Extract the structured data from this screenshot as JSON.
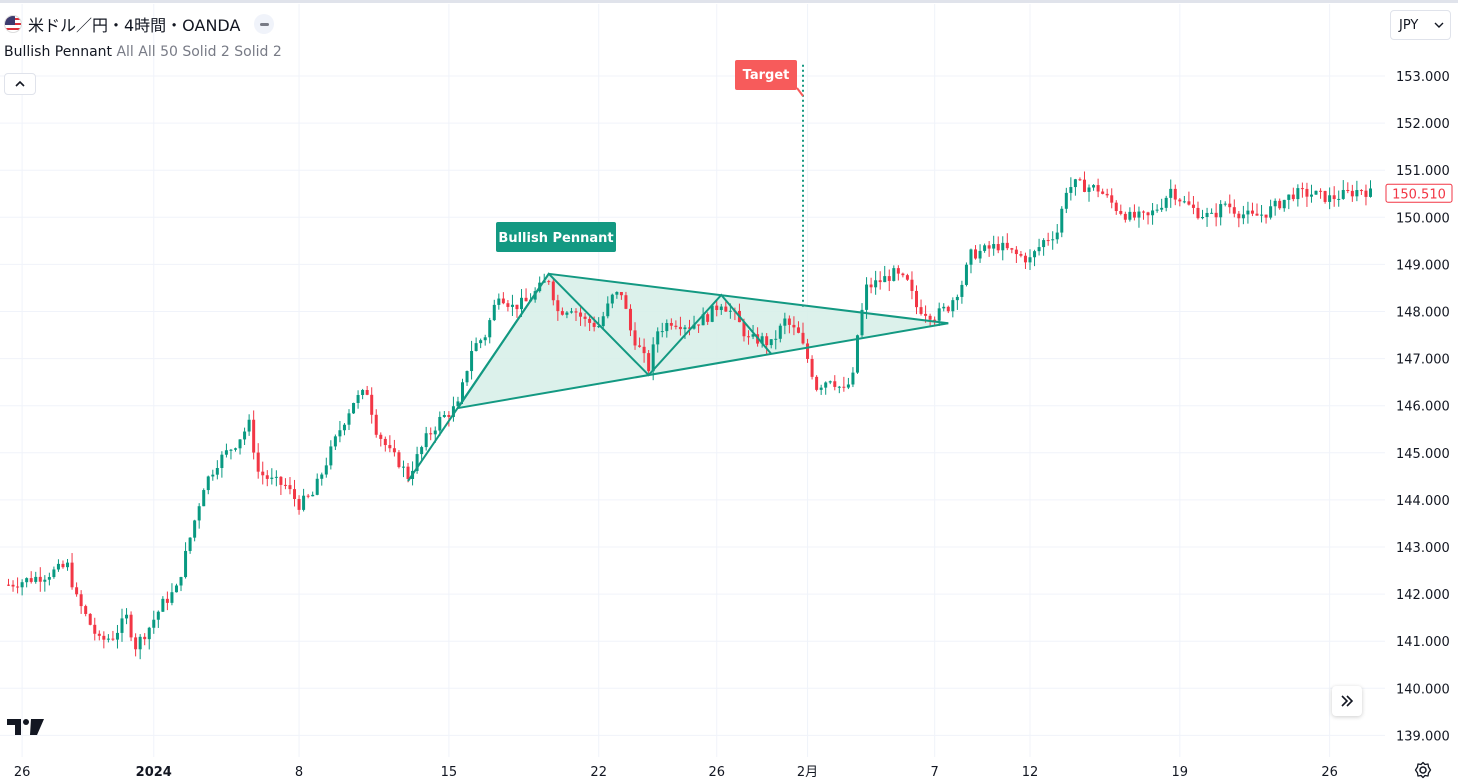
{
  "header": {
    "symbol": "米ドル／円・4時間・OANDA",
    "currency": "JPY"
  },
  "indicator": {
    "name": "Bullish Pennant",
    "params": "All All 50 Solid 2 Solid 2"
  },
  "colors": {
    "up": "#089981",
    "down": "#f23645",
    "pattern": "#139982",
    "pattern_fill": "#d6eee8",
    "target": "#f75b5b",
    "grid": "#f0f3fa",
    "text": "#131722"
  },
  "icons": {
    "flag": "us-flag-icon",
    "hide": "minus-icon",
    "collapse": "chevron-up-icon",
    "currency_dropdown": "chevron-down-icon",
    "logo": "tradingview-logo-icon",
    "scroll": "double-chevron-right-icon",
    "settings": "gear-icon"
  },
  "chart_data": {
    "type": "candlestick",
    "title": "米ドル／円・4時間・OANDA",
    "ylim": [
      138.9,
      153.7
    ],
    "y_ticks": [
      "153.000",
      "152.000",
      "151.000",
      "150.000",
      "149.000",
      "148.000",
      "147.000",
      "146.000",
      "145.000",
      "144.000",
      "143.000",
      "142.000",
      "141.000",
      "140.000",
      "139.000"
    ],
    "y_tick_values": [
      153,
      152,
      151,
      150,
      149,
      148,
      147,
      146,
      145,
      144,
      143,
      142,
      141,
      140,
      139
    ],
    "x_ticks": [
      "26",
      "2024",
      "8",
      "15",
      "22",
      "26",
      "2月",
      "7",
      "12",
      "19",
      "26"
    ],
    "x_tick_bold": [
      false,
      true,
      false,
      false,
      false,
      false,
      false,
      false,
      false,
      false,
      false
    ],
    "x_tick_bar_index": [
      3,
      32,
      64,
      97,
      130,
      156,
      176,
      204,
      225,
      258,
      291
    ],
    "last_price": "150.510",
    "last_price_value": 150.51,
    "grid": true,
    "pattern": {
      "label": "Bullish Pennant",
      "target_label": "Target",
      "pole_start": {
        "bar": 88,
        "value": 144.4
      },
      "pole_mid": {
        "bar": 99,
        "value": 145.9
      },
      "upper_line": [
        {
          "bar": 119,
          "value": 148.8
        },
        {
          "bar": 207,
          "value": 147.75
        }
      ],
      "lower_line": [
        {
          "bar": 99,
          "value": 145.95
        },
        {
          "bar": 207,
          "value": 147.75
        }
      ],
      "zigzag": [
        {
          "bar": 99,
          "value": 145.95
        },
        {
          "bar": 119,
          "value": 148.8
        },
        {
          "bar": 141,
          "value": 146.65
        },
        {
          "bar": 157,
          "value": 148.35
        },
        {
          "bar": 168,
          "value": 147.1
        }
      ],
      "target_bar": 175,
      "target_from": 148.1,
      "target_to": 153.3
    },
    "close_path": [
      [
        0,
        142.2
      ],
      [
        8,
        142.4
      ],
      [
        13,
        142.6
      ],
      [
        15,
        141.9
      ],
      [
        20,
        141.0
      ],
      [
        23,
        141.1
      ],
      [
        26,
        141.5
      ],
      [
        28,
        140.9
      ],
      [
        31,
        141.3
      ],
      [
        34,
        141.8
      ],
      [
        37,
        142.1
      ],
      [
        40,
        143.2
      ],
      [
        43,
        144.3
      ],
      [
        46,
        144.8
      ],
      [
        50,
        145.2
      ],
      [
        53,
        145.6
      ],
      [
        55,
        144.6
      ],
      [
        58,
        144.4
      ],
      [
        61,
        144.3
      ],
      [
        64,
        143.9
      ],
      [
        67,
        144.1
      ],
      [
        70,
        144.8
      ],
      [
        73,
        145.5
      ],
      [
        76,
        146.1
      ],
      [
        79,
        146.3
      ],
      [
        81,
        145.5
      ],
      [
        84,
        145.0
      ],
      [
        86,
        144.8
      ],
      [
        88,
        144.5
      ],
      [
        92,
        145.3
      ],
      [
        95,
        145.7
      ],
      [
        99,
        146.0
      ],
      [
        102,
        147.2
      ],
      [
        105,
        147.5
      ],
      [
        108,
        148.4
      ],
      [
        111,
        148.1
      ],
      [
        114,
        148.2
      ],
      [
        117,
        148.5
      ],
      [
        119,
        148.7
      ],
      [
        121,
        148.0
      ],
      [
        124,
        148.1
      ],
      [
        127,
        147.8
      ],
      [
        130,
        147.7
      ],
      [
        133,
        148.3
      ],
      [
        135,
        148.4
      ],
      [
        137,
        147.6
      ],
      [
        141,
        146.8
      ],
      [
        143,
        147.6
      ],
      [
        146,
        147.8
      ],
      [
        150,
        147.7
      ],
      [
        154,
        147.9
      ],
      [
        157,
        148.2
      ],
      [
        160,
        147.9
      ],
      [
        163,
        147.4
      ],
      [
        166,
        147.4
      ],
      [
        168,
        147.3
      ],
      [
        171,
        147.8
      ],
      [
        174,
        147.5
      ],
      [
        176,
        147.0
      ],
      [
        178,
        146.4
      ],
      [
        181,
        146.6
      ],
      [
        184,
        146.3
      ],
      [
        186,
        146.6
      ],
      [
        187,
        147.5
      ],
      [
        188,
        148.0
      ],
      [
        189,
        148.5
      ],
      [
        191,
        148.6
      ],
      [
        195,
        148.8
      ],
      [
        198,
        148.6
      ],
      [
        200,
        148.1
      ],
      [
        204,
        147.9
      ],
      [
        207,
        148.1
      ],
      [
        210,
        148.6
      ],
      [
        212,
        149.2
      ],
      [
        215,
        149.3
      ],
      [
        218,
        149.4
      ],
      [
        222,
        149.2
      ],
      [
        225,
        149.1
      ],
      [
        228,
        149.5
      ],
      [
        231,
        149.7
      ],
      [
        233,
        150.6
      ],
      [
        235,
        150.7
      ],
      [
        240,
        150.6
      ],
      [
        244,
        150.2
      ],
      [
        247,
        150.0
      ],
      [
        251,
        150.0
      ],
      [
        254,
        150.3
      ],
      [
        256,
        150.6
      ],
      [
        259,
        150.3
      ],
      [
        262,
        150.1
      ],
      [
        265,
        150.0
      ],
      [
        268,
        150.3
      ],
      [
        271,
        150.1
      ],
      [
        274,
        150.0
      ],
      [
        277,
        150.1
      ],
      [
        280,
        150.3
      ],
      [
        283,
        150.5
      ],
      [
        287,
        150.5
      ],
      [
        291,
        150.4
      ],
      [
        295,
        150.5
      ],
      [
        298,
        150.6
      ],
      [
        300,
        150.51
      ]
    ]
  }
}
